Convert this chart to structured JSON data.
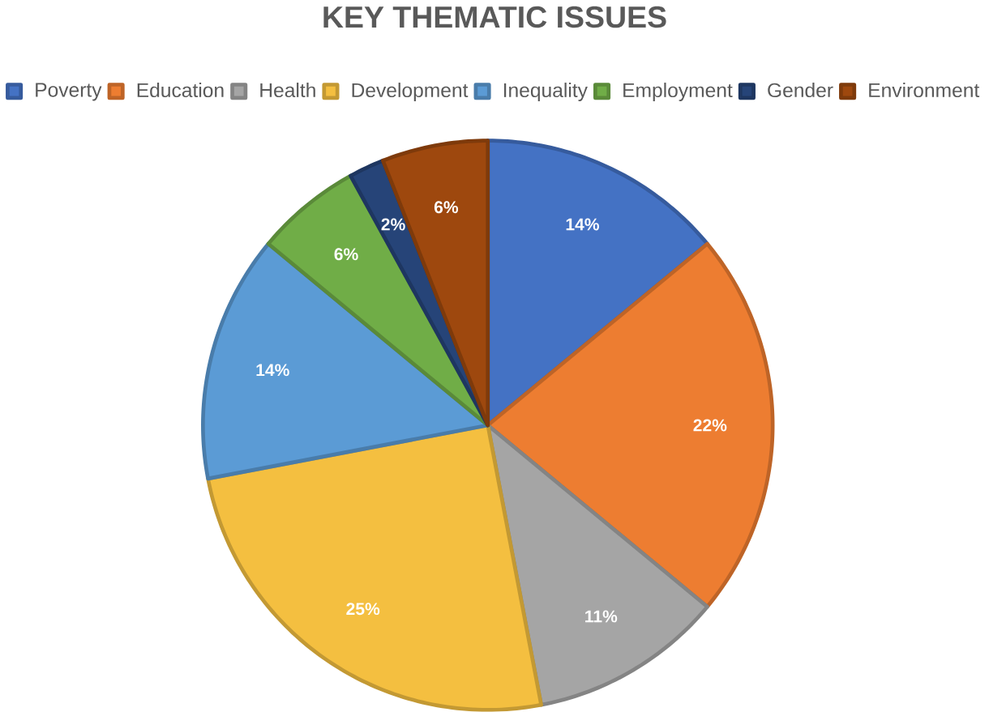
{
  "chart_data": {
    "type": "pie",
    "title": "KEY THEMATIC ISSUES",
    "categories": [
      "Poverty",
      "Education",
      "Health",
      "Development",
      "Inequality",
      "Employment",
      "Gender",
      "Environment"
    ],
    "values": [
      14,
      22,
      11,
      25,
      14,
      6,
      2,
      6
    ],
    "value_labels": [
      "14%",
      "22%",
      "11%",
      "25%",
      "14%",
      "6%",
      "2%",
      "6%"
    ],
    "colors": [
      "#4472c4",
      "#ed7d31",
      "#a5a5a5",
      "#f4bf40",
      "#5b9bd5",
      "#70ad47",
      "#264478",
      "#9e480e"
    ],
    "legend": "top"
  }
}
